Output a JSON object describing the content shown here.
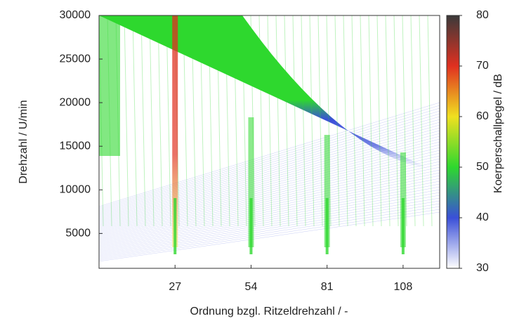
{
  "chart_data": {
    "type": "heatmap",
    "x_label": "Ordnung bzgl. Ritzeldrehzahl / -",
    "y_label": "Drehzahl / U/min",
    "colorbar_label": "Koerperschallpegel / dB",
    "xlim": [
      0,
      121
    ],
    "xticks": [
      27,
      54,
      81,
      108
    ],
    "ylim": [
      1000,
      30000
    ],
    "yticks": [
      5000,
      10000,
      15000,
      20000,
      25000,
      30000
    ],
    "clim": [
      30,
      80
    ],
    "cticks": [
      30,
      40,
      50,
      60,
      70,
      80
    ],
    "colormap": [
      "#ffffff",
      "#3a4fd8",
      "#2ed82e",
      "#f0e020",
      "#e03020",
      "#3a3a3a"
    ]
  }
}
